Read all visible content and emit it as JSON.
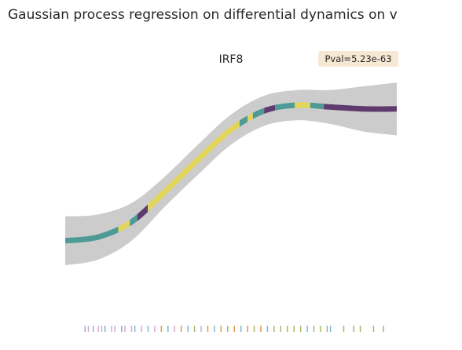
{
  "chart_data": {
    "type": "line",
    "title": "Gaussian process regression on differential dynamics on v",
    "subtitle": "IRF8",
    "annotation": "Pval=5.23e-63",
    "xlim": [
      0,
      1
    ],
    "ylim": [
      0,
      1
    ],
    "x": [
      0,
      0.1,
      0.2,
      0.3,
      0.4,
      0.5,
      0.6,
      0.7,
      0.8,
      0.9,
      1
    ],
    "y": [
      0.18,
      0.2,
      0.28,
      0.44,
      0.61,
      0.77,
      0.87,
      0.9,
      0.89,
      0.88,
      0.88
    ],
    "lower": [
      0.05,
      0.08,
      0.18,
      0.36,
      0.53,
      0.69,
      0.79,
      0.82,
      0.8,
      0.76,
      0.74
    ],
    "upper": [
      0.31,
      0.32,
      0.38,
      0.52,
      0.69,
      0.85,
      0.95,
      0.98,
      0.98,
      1.0,
      1.02
    ],
    "band_color": "#cccccc",
    "segments": [
      {
        "x0": 0,
        "x1": 0.16,
        "color": "#4e9a97"
      },
      {
        "x0": 0.16,
        "x1": 0.195,
        "color": "#e2d55a"
      },
      {
        "x0": 0.195,
        "x1": 0.218,
        "color": "#4e9a97"
      },
      {
        "x0": 0.218,
        "x1": 0.249,
        "color": "#5f3a6e"
      },
      {
        "x0": 0.249,
        "x1": 0.526,
        "color": "#e2d55a"
      },
      {
        "x0": 0.526,
        "x1": 0.55,
        "color": "#4e9a97"
      },
      {
        "x0": 0.55,
        "x1": 0.566,
        "color": "#e2d55a"
      },
      {
        "x0": 0.566,
        "x1": 0.6,
        "color": "#4e9a97"
      },
      {
        "x0": 0.6,
        "x1": 0.633,
        "color": "#5f3a6e"
      },
      {
        "x0": 0.633,
        "x1": 0.692,
        "color": "#4e9a97"
      },
      {
        "x0": 0.692,
        "x1": 0.739,
        "color": "#e2d55a"
      },
      {
        "x0": 0.739,
        "x1": 0.78,
        "color": "#4e9a97"
      },
      {
        "x0": 0.78,
        "x1": 1,
        "color": "#5f3a6e"
      }
    ],
    "rug": [
      {
        "x": 0.06,
        "color": "#7eb6d9"
      },
      {
        "x": 0.07,
        "color": "#d3a9d3"
      },
      {
        "x": 0.085,
        "color": "#7eb6d9"
      },
      {
        "x": 0.1,
        "color": "#d3a9d3"
      },
      {
        "x": 0.11,
        "color": "#d3a9d3"
      },
      {
        "x": 0.12,
        "color": "#7eb6d9"
      },
      {
        "x": 0.14,
        "color": "#d3a9d3"
      },
      {
        "x": 0.15,
        "color": "#d3a9d3"
      },
      {
        "x": 0.17,
        "color": "#7eb6d9"
      },
      {
        "x": 0.18,
        "color": "#d3a9d3"
      },
      {
        "x": 0.2,
        "color": "#d3a9d3"
      },
      {
        "x": 0.21,
        "color": "#7eb6d9"
      },
      {
        "x": 0.23,
        "color": "#d3a9d3"
      },
      {
        "x": 0.25,
        "color": "#7eb6d9"
      },
      {
        "x": 0.27,
        "color": "#d3a9d3"
      },
      {
        "x": 0.29,
        "color": "#e39a48"
      },
      {
        "x": 0.31,
        "color": "#7eb6d9"
      },
      {
        "x": 0.33,
        "color": "#d3a9d3"
      },
      {
        "x": 0.35,
        "color": "#e39a48"
      },
      {
        "x": 0.37,
        "color": "#7eb6d9"
      },
      {
        "x": 0.39,
        "color": "#a9b86a"
      },
      {
        "x": 0.41,
        "color": "#d3a9d3"
      },
      {
        "x": 0.43,
        "color": "#e39a48"
      },
      {
        "x": 0.45,
        "color": "#7eb6d9"
      },
      {
        "x": 0.47,
        "color": "#e39a48"
      },
      {
        "x": 0.49,
        "color": "#a9b86a"
      },
      {
        "x": 0.51,
        "color": "#e39a48"
      },
      {
        "x": 0.53,
        "color": "#7eb6d9"
      },
      {
        "x": 0.55,
        "color": "#e39a48"
      },
      {
        "x": 0.57,
        "color": "#a9b86a"
      },
      {
        "x": 0.59,
        "color": "#e39a48"
      },
      {
        "x": 0.61,
        "color": "#7eb6d9"
      },
      {
        "x": 0.63,
        "color": "#a9b86a"
      },
      {
        "x": 0.65,
        "color": "#a9b86a"
      },
      {
        "x": 0.67,
        "color": "#e39a48"
      },
      {
        "x": 0.69,
        "color": "#a9b86a"
      },
      {
        "x": 0.71,
        "color": "#a9b86a"
      },
      {
        "x": 0.73,
        "color": "#7eb6d9"
      },
      {
        "x": 0.75,
        "color": "#a9b86a"
      },
      {
        "x": 0.77,
        "color": "#a9b86a"
      },
      {
        "x": 0.79,
        "color": "#a9b86a"
      },
      {
        "x": 0.8,
        "color": "#7eb6d9"
      },
      {
        "x": 0.84,
        "color": "#a9b86a"
      },
      {
        "x": 0.87,
        "color": "#a9b86a"
      },
      {
        "x": 0.89,
        "color": "#a9b86a"
      },
      {
        "x": 0.93,
        "color": "#a9b86a"
      },
      {
        "x": 0.96,
        "color": "#a9b86a"
      }
    ]
  }
}
